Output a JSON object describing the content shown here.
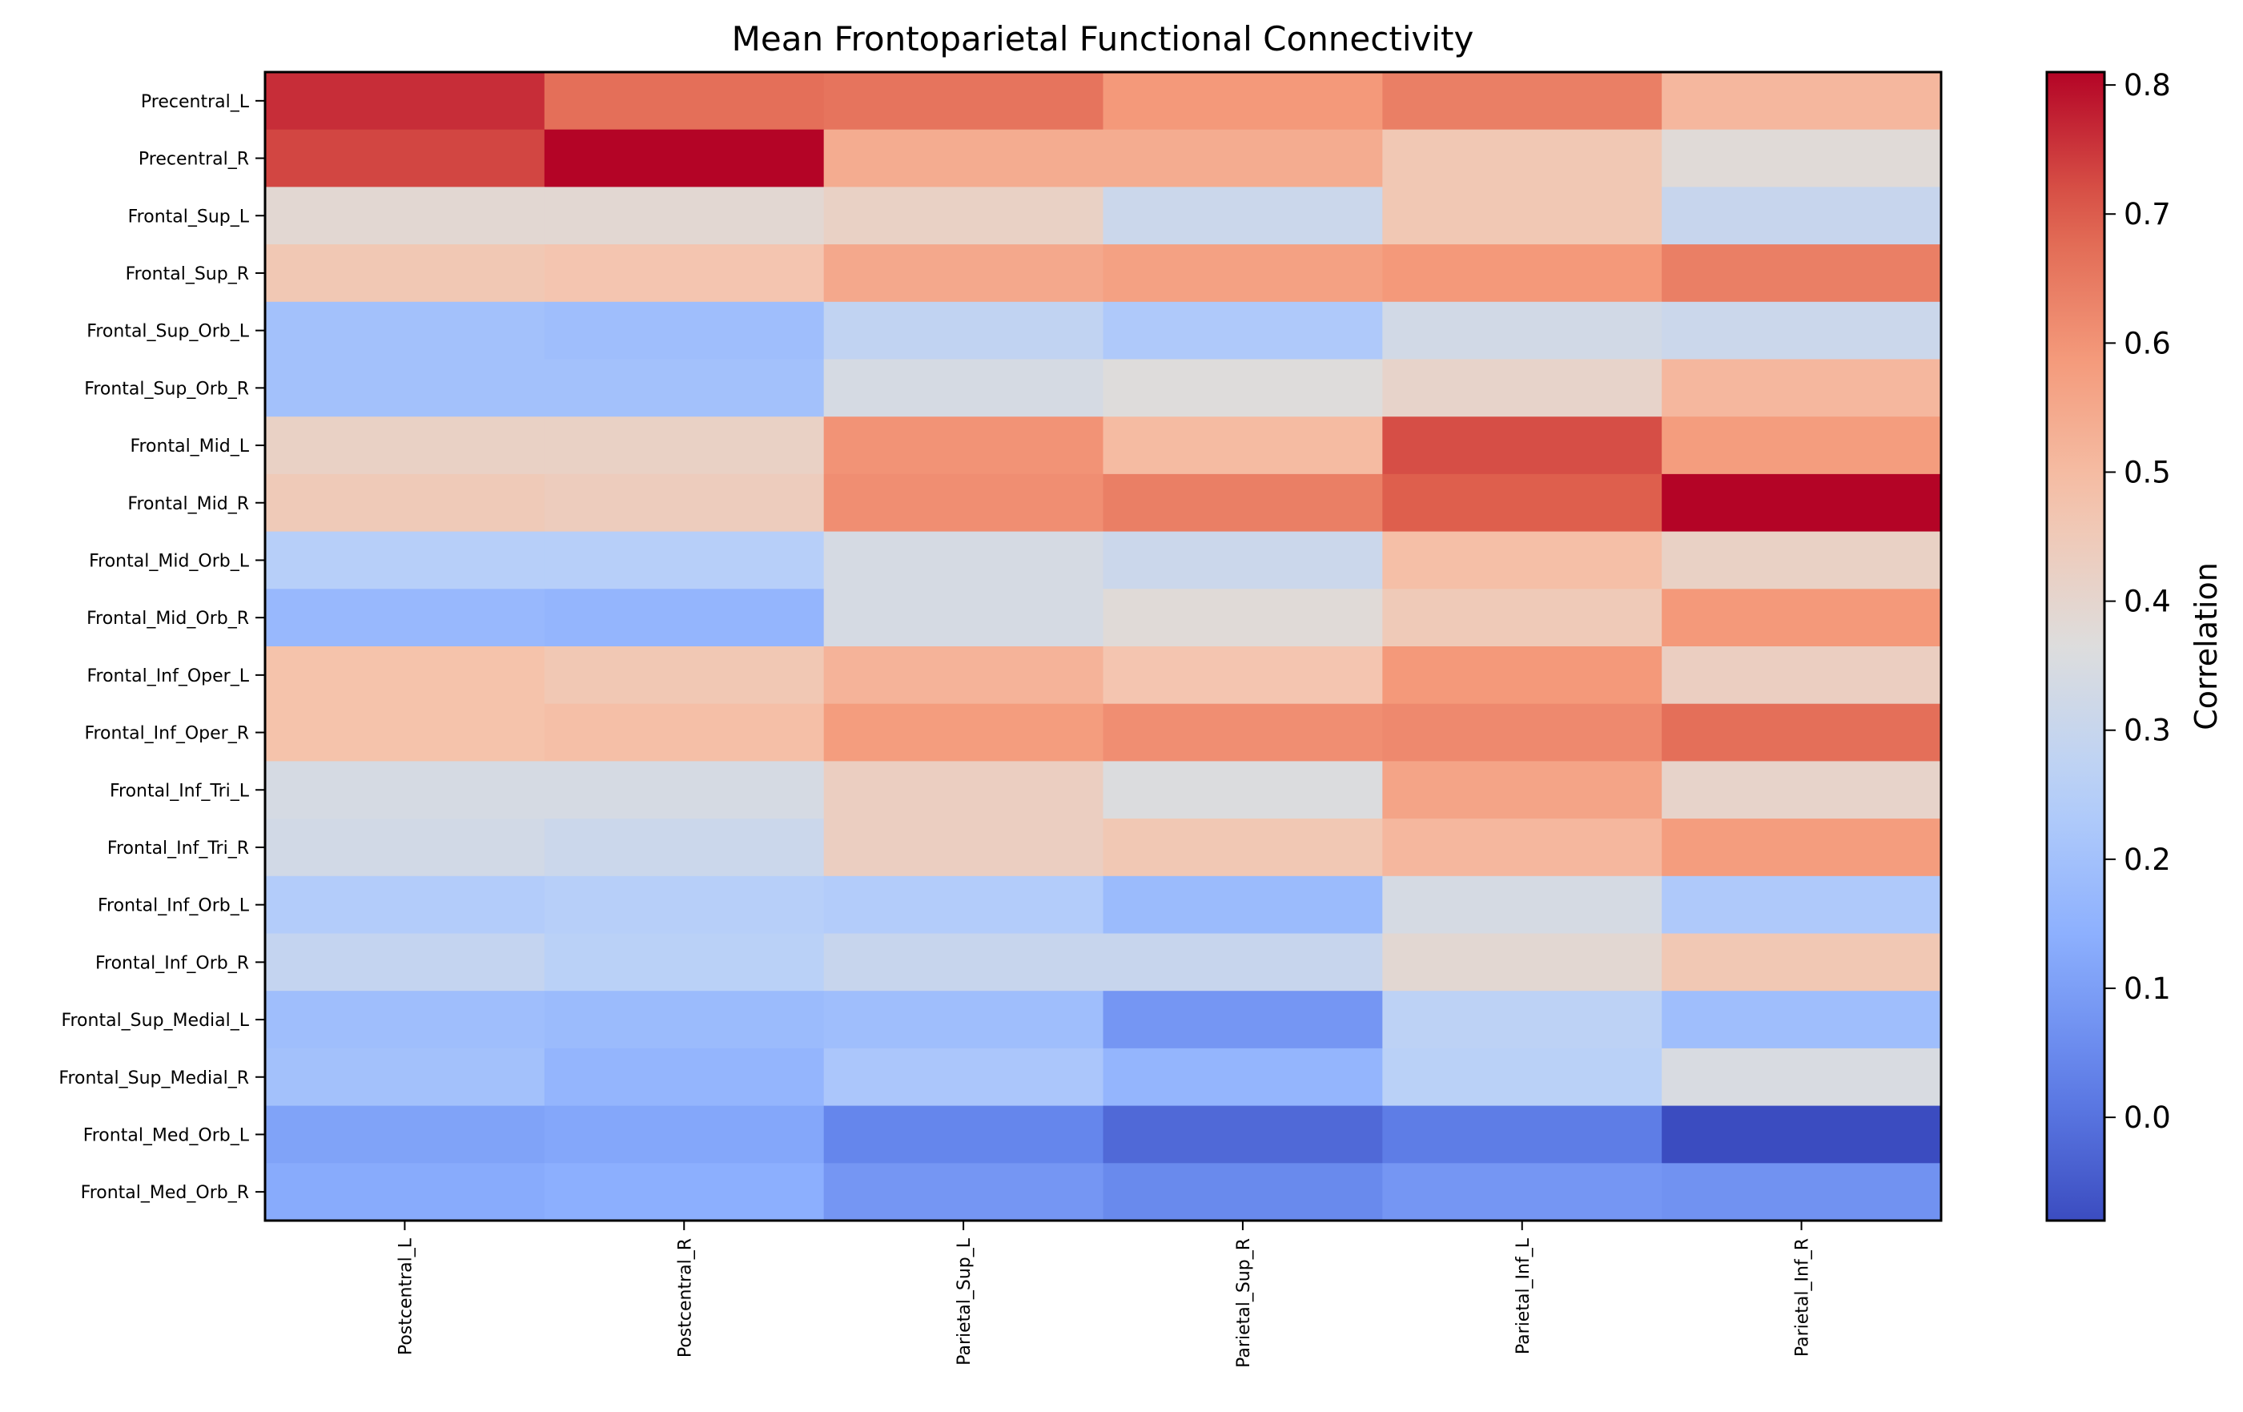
{
  "chart_data": {
    "type": "heatmap",
    "title": "Mean Frontoparietal Functional Connectivity",
    "xlabel": "",
    "ylabel": "",
    "colorbar_label": "Correlation",
    "colormap": "coolwarm",
    "vmin": -0.08,
    "vmax": 0.81,
    "colorbar_ticks": [
      "0.0",
      "0.1",
      "0.2",
      "0.3",
      "0.4",
      "0.5",
      "0.6",
      "0.7",
      "0.8"
    ],
    "columns": [
      "Postcentral_L",
      "Postcentral_R",
      "Parietal_Sup_L",
      "Parietal_Sup_R",
      "Parietal_Inf_L",
      "Parietal_Inf_R"
    ],
    "rows": [
      "Precentral_L",
      "Precentral_R",
      "Frontal_Sup_L",
      "Frontal_Sup_R",
      "Frontal_Sup_Orb_L",
      "Frontal_Sup_Orb_R",
      "Frontal_Mid_L",
      "Frontal_Mid_R",
      "Frontal_Mid_Orb_L",
      "Frontal_Mid_Orb_R",
      "Frontal_Inf_Oper_L",
      "Frontal_Inf_Oper_R",
      "Frontal_Inf_Tri_L",
      "Frontal_Inf_Tri_R",
      "Frontal_Inf_Orb_L",
      "Frontal_Inf_Orb_R",
      "Frontal_Sup_Medial_L",
      "Frontal_Sup_Medial_R",
      "Frontal_Med_Orb_L",
      "Frontal_Med_Orb_R"
    ],
    "values": [
      [
        0.76,
        0.67,
        0.66,
        0.59,
        0.64,
        0.51
      ],
      [
        0.73,
        0.81,
        0.54,
        0.54,
        0.46,
        0.38
      ],
      [
        0.39,
        0.39,
        0.42,
        0.31,
        0.46,
        0.3
      ],
      [
        0.46,
        0.47,
        0.55,
        0.57,
        0.59,
        0.64
      ],
      [
        0.2,
        0.19,
        0.28,
        0.23,
        0.33,
        0.31
      ],
      [
        0.2,
        0.2,
        0.34,
        0.37,
        0.41,
        0.51
      ],
      [
        0.42,
        0.42,
        0.6,
        0.5,
        0.72,
        0.58
      ],
      [
        0.45,
        0.44,
        0.61,
        0.64,
        0.7,
        0.81
      ],
      [
        0.25,
        0.25,
        0.34,
        0.31,
        0.49,
        0.42
      ],
      [
        0.17,
        0.16,
        0.34,
        0.38,
        0.45,
        0.59
      ],
      [
        0.48,
        0.46,
        0.52,
        0.47,
        0.59,
        0.43
      ],
      [
        0.48,
        0.49,
        0.58,
        0.61,
        0.62,
        0.67
      ],
      [
        0.34,
        0.34,
        0.43,
        0.36,
        0.56,
        0.41
      ],
      [
        0.33,
        0.31,
        0.43,
        0.46,
        0.51,
        0.58
      ],
      [
        0.24,
        0.25,
        0.24,
        0.18,
        0.34,
        0.23
      ],
      [
        0.29,
        0.26,
        0.3,
        0.3,
        0.39,
        0.46
      ],
      [
        0.19,
        0.18,
        0.19,
        0.08,
        0.27,
        0.19
      ],
      [
        0.2,
        0.16,
        0.22,
        0.16,
        0.26,
        0.35
      ],
      [
        0.11,
        0.12,
        0.04,
        -0.02,
        0.02,
        -0.08
      ],
      [
        0.13,
        0.14,
        0.08,
        0.05,
        0.08,
        0.07
      ]
    ]
  }
}
